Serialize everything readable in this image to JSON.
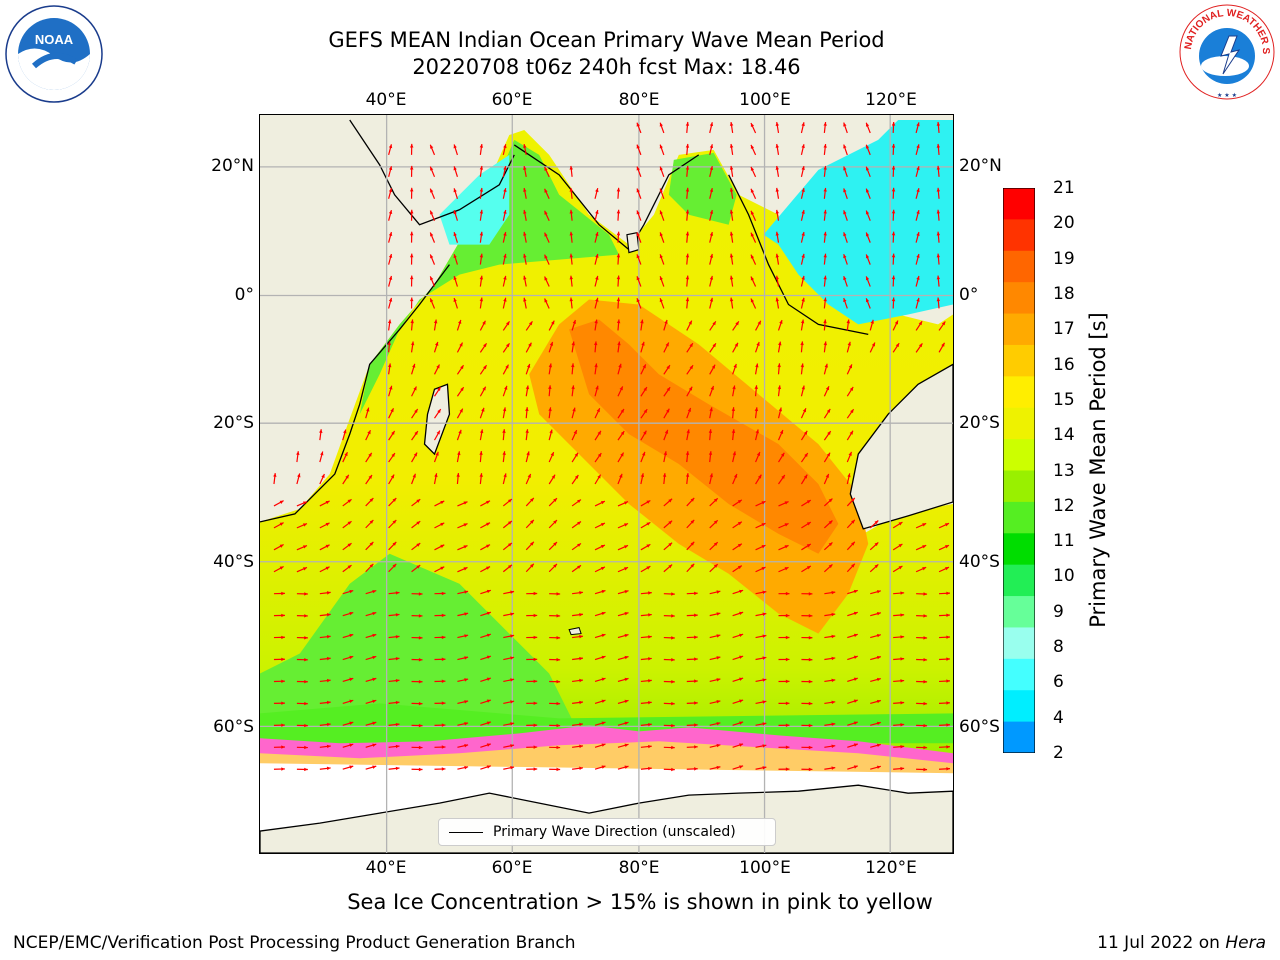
{
  "title": {
    "line1": "GEFS MEAN Indian Ocean Primary Wave Mean Period",
    "line2": "20220708 t06z 240h fcst   Max: 18.46"
  },
  "map": {
    "lon_labels": [
      "40°E",
      "60°E",
      "80°E",
      "100°E",
      "120°E"
    ],
    "lat_labels": [
      "20°N",
      "0°",
      "20°S",
      "40°S",
      "60°S"
    ],
    "land_color": "#efeedf",
    "grid_color": "#b3b3b3",
    "arrow_color": "#ff0000"
  },
  "colorbar": {
    "title": "Primary Wave Mean Period [s]",
    "ticks": [
      "21",
      "20",
      "19",
      "18",
      "17",
      "16",
      "15",
      "14",
      "13",
      "12",
      "11",
      "10",
      "9",
      "8",
      "6",
      "4",
      "2"
    ],
    "colors_top_to_bottom": [
      "#ff0000",
      "#ff3300",
      "#ff6600",
      "#ff8800",
      "#ffaa00",
      "#ffcc00",
      "#ffee00",
      "#eef200",
      "#ccff00",
      "#99f000",
      "#55ee22",
      "#00dd00",
      "#22ee55",
      "#66ff99",
      "#99ffee",
      "#44ffff",
      "#00eeff",
      "#0099ff"
    ],
    "extend_color": "#0000ff"
  },
  "legend": {
    "label": "Primary Wave Direction (unscaled)"
  },
  "subcaption": "Sea Ice Concentration > 15% is shown in pink to yellow",
  "footer": {
    "left": "NCEP/EMC/Verification Post Processing Product Generation Branch",
    "right_date": "11 Jul 2022 on ",
    "right_machine": "Hera"
  },
  "logos": {
    "noaa": {
      "text": "NOAA"
    },
    "nws": {
      "text": "NATIONAL WEATHER SERVICE"
    }
  }
}
